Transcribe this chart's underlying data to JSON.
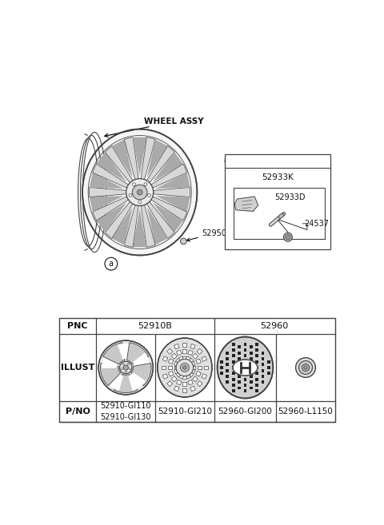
{
  "bg_color": "#ffffff",
  "wheel_assy_label": "WHEEL ASSY",
  "part_52950": "52950",
  "part_a_label": "a",
  "inset_a_label": "a",
  "inset_52933K": "52933K",
  "inset_52933D": "52933D",
  "inset_24537": "24537",
  "table_pnc_label": "PNC",
  "table_illust_label": "ILLUST",
  "table_pno_label": "P/NO",
  "table_col1_pnc": "52910B",
  "table_col2_pnc": "52960",
  "table_col1_pno": "52910-GI110\n52910-GI130",
  "table_col2_pno": "52910-GI210",
  "table_col3_pno": "52960-GI200",
  "table_col4_pno": "52960-L1150",
  "lc": "#444444",
  "tc": "#111111",
  "tlc": "#444444"
}
